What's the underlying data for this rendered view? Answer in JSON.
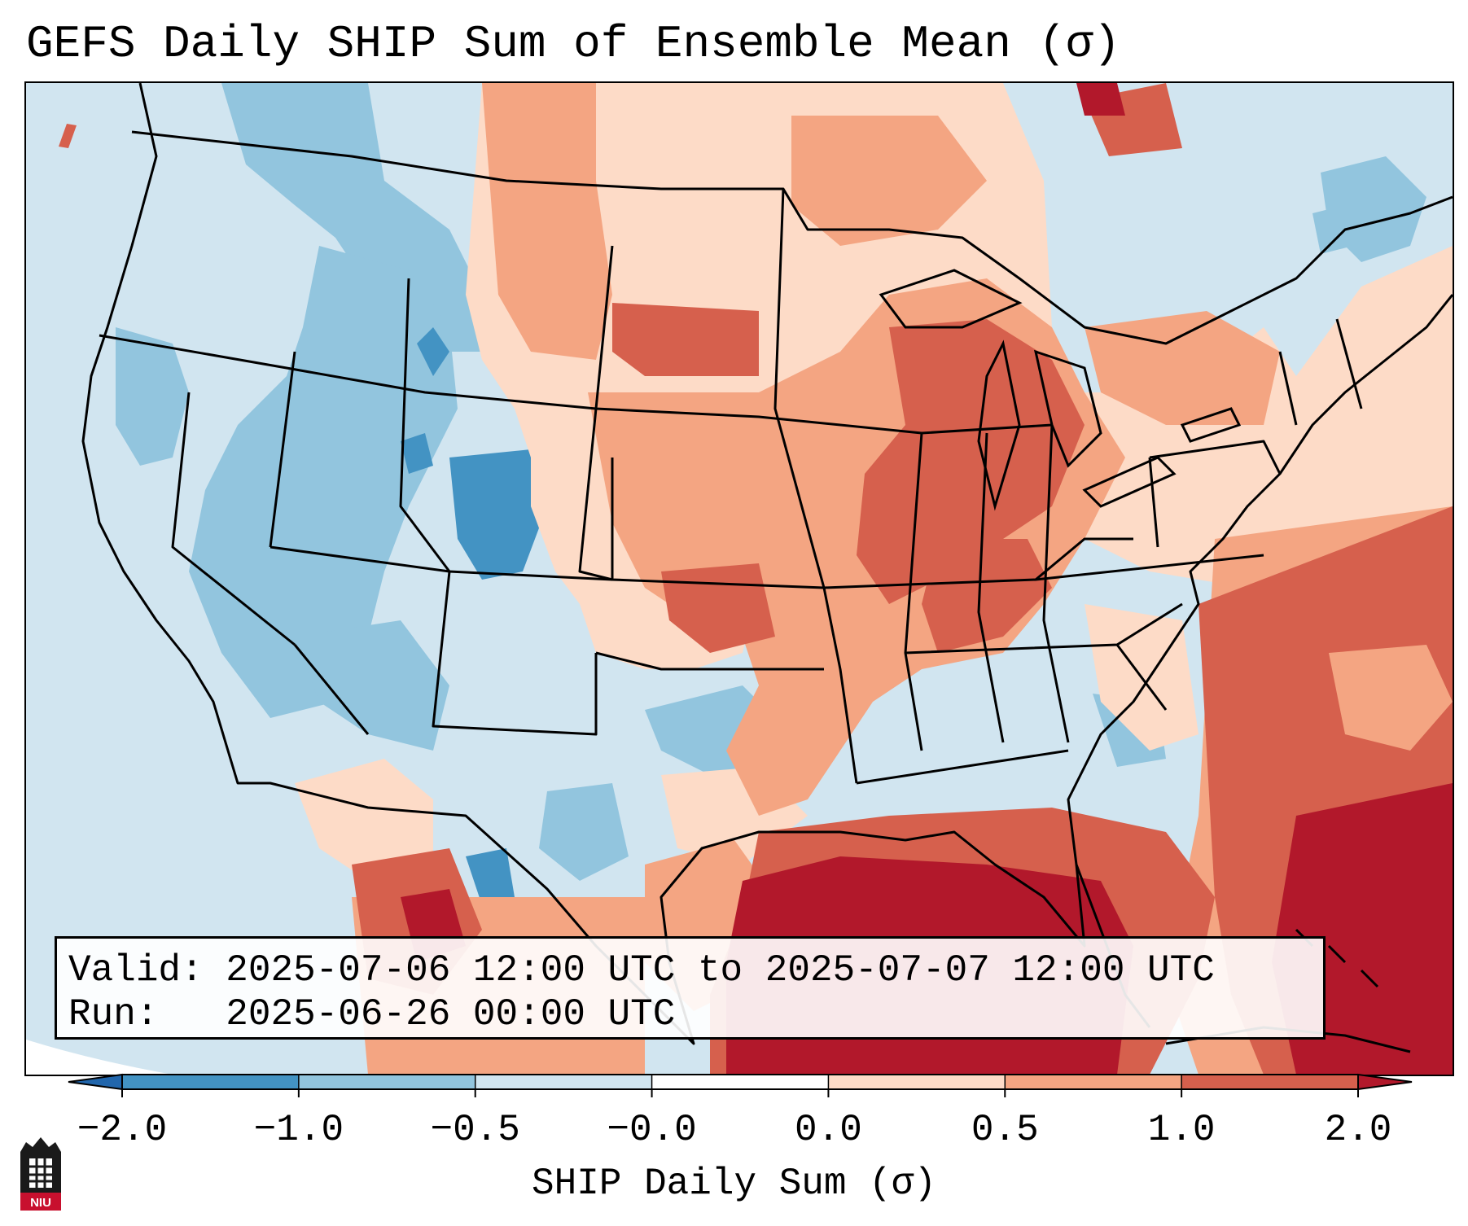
{
  "title": "GEFS Daily SHIP Sum of Ensemble Mean (σ)",
  "info": {
    "valid_label": "Valid:",
    "valid_value": "2025-07-06 12:00 UTC to 2025-07-07 12:00 UTC",
    "run_label": "Run:",
    "run_value": "2025-06-26 00:00 UTC"
  },
  "colorbar": {
    "label": "SHIP Daily Sum (σ)",
    "ticks": [
      "−2.0",
      "−1.0",
      "−0.5",
      "−0.0",
      "0.0",
      "0.5",
      "1.0",
      "2.0"
    ],
    "colors": [
      "#2166ac",
      "#4393c3",
      "#92c5de",
      "#d1e5f0",
      "#ffffff",
      "#fddbc7",
      "#f4a582",
      "#d6604d",
      "#b2182b"
    ]
  },
  "logo": {
    "text": "NIU"
  },
  "map": {
    "region": "Contiguous United States",
    "field": "SHIP daily sum standardized anomaly",
    "regional_anomalies": {
      "pacific_northwest": "-0.5 to -1.0",
      "colorado_utah": "-1.0 to -2.0",
      "arizona_new_mexico": "-0.5 to -1.0",
      "texas": "-0.0 to -1.0",
      "northern_plains": "0.5 to 1.0",
      "upper_midwest": "1.0 to 2.0",
      "ohio_valley": "1.0 to 2.0",
      "southeast": "-0.0 to 0.5",
      "gulf_of_mexico": ">2.0",
      "atlantic": "1.0 to >2.0"
    }
  }
}
